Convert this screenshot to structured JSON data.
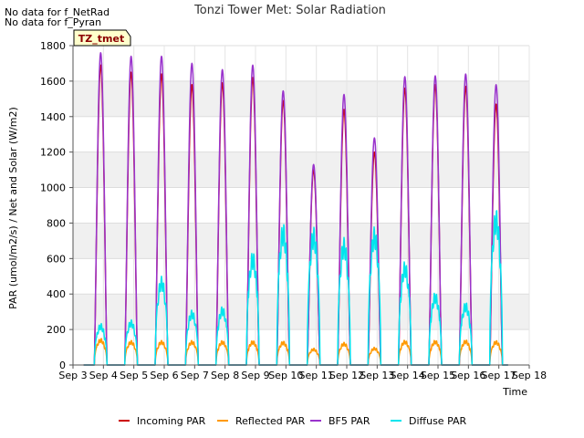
{
  "notes": [
    "No data for f_NetRad",
    "No data for f_Pyran"
  ],
  "chart_data": {
    "type": "line",
    "title": "Tonzi Tower Met: Solar Radiation",
    "xlabel": "Time",
    "ylabel": "PAR (umol/m2/s) / Net and Solar (W/m2)",
    "tag": "TZ_tmet",
    "ylim": [
      0,
      1800
    ],
    "yticks": [
      0,
      200,
      400,
      600,
      800,
      1000,
      1200,
      1400,
      1600,
      1800
    ],
    "xlim": [
      3,
      18
    ],
    "xticks": [
      {
        "x": 3,
        "label": "Sep 3"
      },
      {
        "x": 4,
        "label": "Sep 4"
      },
      {
        "x": 5,
        "label": "Sep 5"
      },
      {
        "x": 6,
        "label": "Sep 6"
      },
      {
        "x": 7,
        "label": "Sep 7"
      },
      {
        "x": 8,
        "label": "Sep 8"
      },
      {
        "x": 9,
        "label": "Sep 9"
      },
      {
        "x": 10,
        "label": "Sep 10"
      },
      {
        "x": 11,
        "label": "Sep 11"
      },
      {
        "x": 12,
        "label": "Sep 12"
      },
      {
        "x": 13,
        "label": "Sep 13"
      },
      {
        "x": 14,
        "label": "Sep 14"
      },
      {
        "x": 15,
        "label": "Sep 15"
      },
      {
        "x": 16,
        "label": "Sep 16"
      },
      {
        "x": 17,
        "label": "Sep 17"
      },
      {
        "x": 18,
        "label": "Sep 18"
      }
    ],
    "grid": true,
    "legend_position": "bottom",
    "series": [
      {
        "name": "Incoming PAR",
        "color": "#cc0000",
        "daily_peaks": [
          1690,
          1650,
          1640,
          1580,
          1590,
          1620,
          1490,
          1100,
          1440,
          1200,
          1560,
          1580,
          1570,
          1470
        ]
      },
      {
        "name": "Reflected PAR",
        "color": "#ff9900",
        "daily_peaks": [
          150,
          138,
          138,
          138,
          138,
          138,
          135,
          95,
          128,
          100,
          140,
          140,
          142,
          138
        ]
      },
      {
        "name": "BF5 PAR",
        "color": "#9933cc",
        "daily_peaks": [
          1760,
          1740,
          1740,
          1700,
          1665,
          1690,
          1545,
          1130,
          1525,
          1280,
          1625,
          1630,
          1640,
          1580
        ]
      },
      {
        "name": "Diffuse PAR",
        "color": "#00e5ee",
        "daily_peaks": [
          235,
          255,
          500,
          310,
          330,
          640,
          800,
          780,
          720,
          780,
          585,
          410,
          355,
          880
        ]
      }
    ]
  }
}
